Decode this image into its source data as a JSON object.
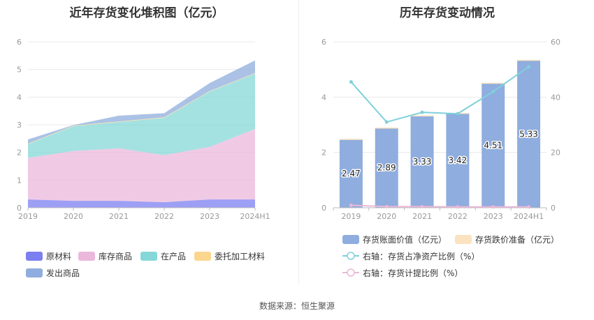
{
  "left_chart": {
    "title": "近年存货变化堆积图（亿元）",
    "chart_data": {
      "type": "area",
      "stacked": true,
      "x": [
        "2019",
        "2020",
        "2021",
        "2022",
        "2023",
        "2024H1"
      ],
      "ylim": [
        0,
        6
      ],
      "yticks": [
        0,
        1,
        2,
        3,
        4,
        5,
        6
      ],
      "grid": true,
      "legend_position": "bottom",
      "series": [
        {
          "name": "原材料",
          "color": "#7b7ff0",
          "values": [
            0.3,
            0.25,
            0.25,
            0.2,
            0.3,
            0.3
          ]
        },
        {
          "name": "库存商品",
          "color": "#ebb8dc",
          "values": [
            1.5,
            1.8,
            1.9,
            1.7,
            1.9,
            2.55
          ]
        },
        {
          "name": "在产品",
          "color": "#86d8d8",
          "values": [
            0.5,
            0.9,
            0.95,
            1.35,
            2.0,
            2.0
          ]
        },
        {
          "name": "委托加工材料",
          "color": "#fcd68e",
          "values": [
            0.02,
            0.02,
            0.02,
            0.02,
            0.02,
            0.02
          ]
        },
        {
          "name": "发出商品",
          "color": "#8fadde",
          "values": [
            0.15,
            0.02,
            0.21,
            0.15,
            0.29,
            0.46
          ]
        }
      ],
      "draw_order": [
        4,
        3,
        2,
        1,
        0
      ]
    }
  },
  "right_chart": {
    "title": "历年存货变动情况",
    "chart_data": {
      "type": "bar",
      "categories": [
        "2019",
        "2020",
        "2021",
        "2022",
        "2023",
        "2024H1"
      ],
      "ylim": [
        0,
        6
      ],
      "yticks": [
        0,
        2,
        4,
        6
      ],
      "y2lim": [
        0,
        60
      ],
      "y2ticks": [
        0,
        20,
        40,
        60
      ],
      "legend_position": "bottom",
      "series": [
        {
          "name": "存货账面价值（亿元）",
          "type": "bar",
          "axis": "left",
          "color": "#8fadde",
          "values": [
            2.47,
            2.89,
            3.33,
            3.42,
            4.51,
            5.33
          ],
          "labels": [
            "2.47",
            "2.89",
            "3.33",
            "3.42",
            "4.51",
            "5.33"
          ]
        },
        {
          "name": "存货跌价准备（亿元）",
          "type": "bar",
          "axis": "left",
          "color": "#fbe3c0",
          "values": [
            0.02,
            0.01,
            0.01,
            0.01,
            0.01,
            0.02
          ]
        },
        {
          "name": "右轴：存货占净资产比例（%）",
          "type": "line",
          "axis": "right",
          "color": "#7fd0dc",
          "values": [
            45.5,
            31.0,
            34.5,
            34.0,
            42.0,
            51.0
          ]
        },
        {
          "name": "右轴：存货计提比例（%）",
          "type": "line",
          "axis": "right",
          "color": "#eab8d8",
          "values": [
            0.9,
            0.4,
            0.4,
            0.3,
            0.3,
            0.3
          ]
        }
      ]
    }
  },
  "footer": {
    "source": "数据来源：恒生聚源"
  }
}
